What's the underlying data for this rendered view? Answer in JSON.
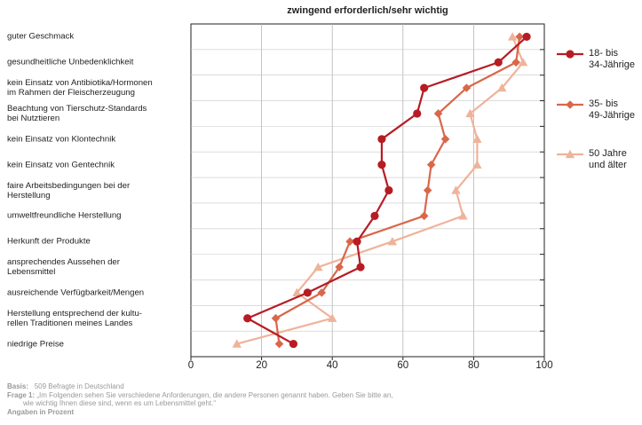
{
  "chart_data": {
    "type": "line",
    "title": "zwingend erforderlich/sehr wichtig",
    "orientation": "horizontal",
    "categories": [
      "guter Geschmack",
      "gesundheitliche Unbedenklichkeit",
      "kein Einsatz von Antibiotika/Hormonen\nim Rahmen der Fleischerzeugung",
      "Beachtung von Tierschutz-Standards\nbei Nutztieren",
      "kein Einsatz von Klontechnik",
      "kein Einsatz von Gentechnik",
      "faire Arbeitsbedingungen bei der\nHerstellung",
      "umweltfreundliche Herstellung",
      "Herkunft der Produkte",
      "ansprechendes Aussehen der\nLebensmittel",
      "ausreichende Verfügbarkeit/Mengen",
      "Herstellung entsprechend der kultu-\nrellen Traditionen meines Landes",
      "niedrige Preise"
    ],
    "series": [
      {
        "name": "18- bis\n34-Jährige",
        "color": "#b71c24",
        "marker": "circle",
        "values": [
          95,
          87,
          66,
          64,
          54,
          54,
          56,
          52,
          47,
          48,
          33,
          16,
          29
        ]
      },
      {
        "name": "35- bis\n49-Jährige",
        "color": "#d9674a",
        "marker": "diamond",
        "values": [
          93,
          92,
          78,
          70,
          72,
          68,
          67,
          66,
          45,
          42,
          37,
          24,
          25
        ]
      },
      {
        "name": "50 Jahre\nund älter",
        "color": "#efb39a",
        "marker": "triangle",
        "values": [
          91,
          94,
          88,
          79,
          81,
          81,
          75,
          77,
          57,
          36,
          30,
          40,
          13
        ]
      }
    ],
    "xlim": [
      0,
      100
    ],
    "xticks": [
      0,
      20,
      40,
      60,
      80,
      100
    ],
    "grid": true,
    "legend_position": "right"
  },
  "footer": {
    "basis_label": "Basis:",
    "basis_text": "509 Befragte in Deutschland",
    "frage_label": "Frage 1:",
    "frage_text": "„Im Folgenden sehen Sie verschiedene Anforderungen, die andere Personen genannt haben. Geben Sie bitte an,",
    "frage_text2": "wie wichtig Ihnen diese sind, wenn es um Lebensmittel geht.“",
    "angaben": "Angaben in Prozent"
  }
}
